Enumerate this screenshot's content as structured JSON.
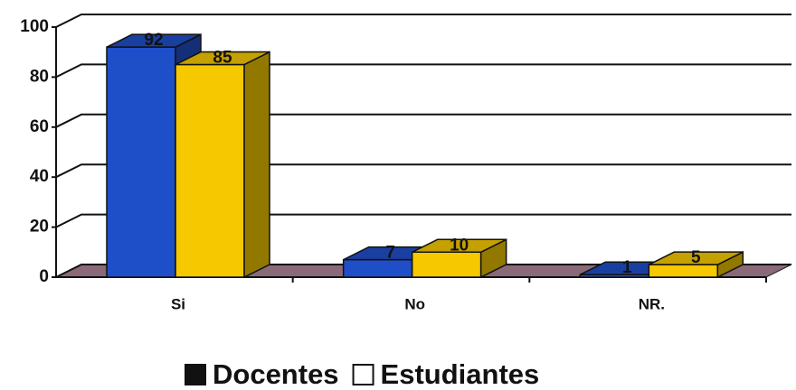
{
  "chart_data": {
    "type": "bar3d",
    "categories": [
      "Si",
      "No",
      "NR."
    ],
    "series": [
      {
        "name": "Docentes",
        "color": "#1f4fc8",
        "values": [
          92,
          7,
          1
        ]
      },
      {
        "name": "Estudiantes",
        "color": "#f5c800",
        "values": [
          85,
          10,
          5
        ]
      }
    ],
    "ylim": [
      0,
      100
    ],
    "yticks": [
      0,
      20,
      40,
      60,
      80,
      100
    ],
    "grid": true,
    "legend": "bottom"
  }
}
